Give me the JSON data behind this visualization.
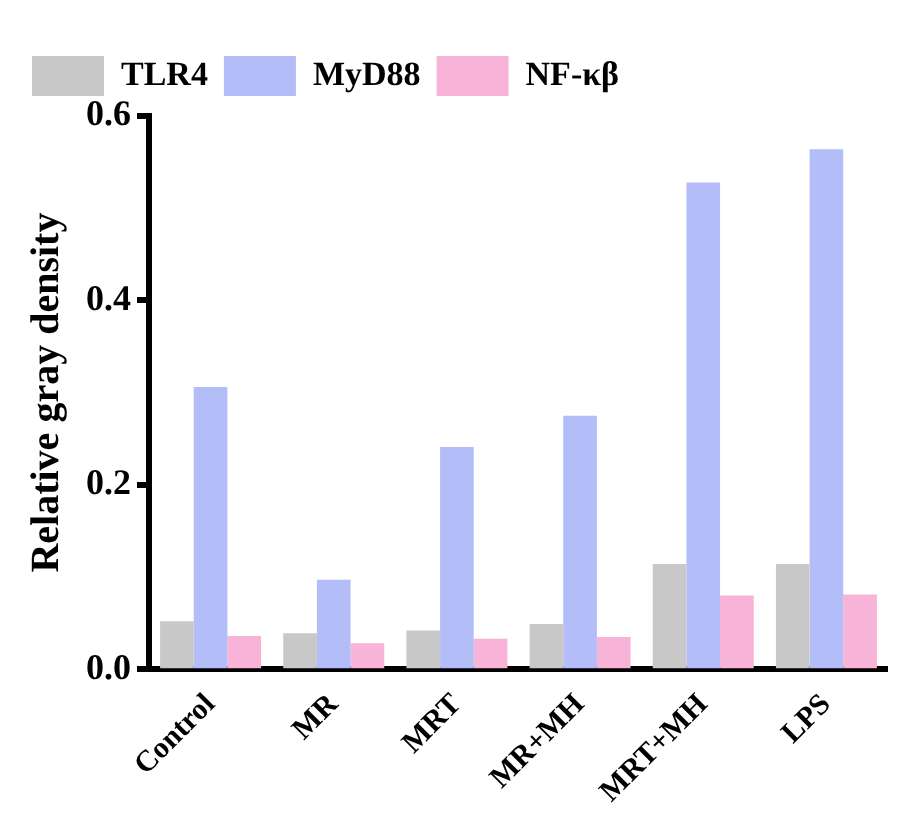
{
  "chart_data": {
    "type": "bar",
    "ylabel": "Relative gray density",
    "categories": [
      "Control",
      "MR",
      "MRT",
      "MR+MH",
      "MRT+MH",
      "LPS"
    ],
    "series": [
      {
        "name": "TLR4",
        "color": "#c8c8c8",
        "values": [
          0.052,
          0.039,
          0.042,
          0.049,
          0.114,
          0.114
        ]
      },
      {
        "name": "MyD88",
        "color": "#b3bdf8",
        "values": [
          0.306,
          0.097,
          0.241,
          0.275,
          0.528,
          0.564
        ]
      },
      {
        "name": "NF-κβ",
        "color": "#f8b3d8",
        "values": [
          0.036,
          0.028,
          0.033,
          0.035,
          0.08,
          0.081
        ]
      }
    ],
    "ylim": [
      0,
      0.6
    ],
    "yticks": [
      {
        "value": 0,
        "label": "0.0"
      },
      {
        "value": 0.2,
        "label": "0.2"
      },
      {
        "value": 0.4,
        "label": "0.4"
      },
      {
        "value": 0.6,
        "label": "0.6"
      }
    ],
    "grid": false,
    "legend": "top left"
  }
}
